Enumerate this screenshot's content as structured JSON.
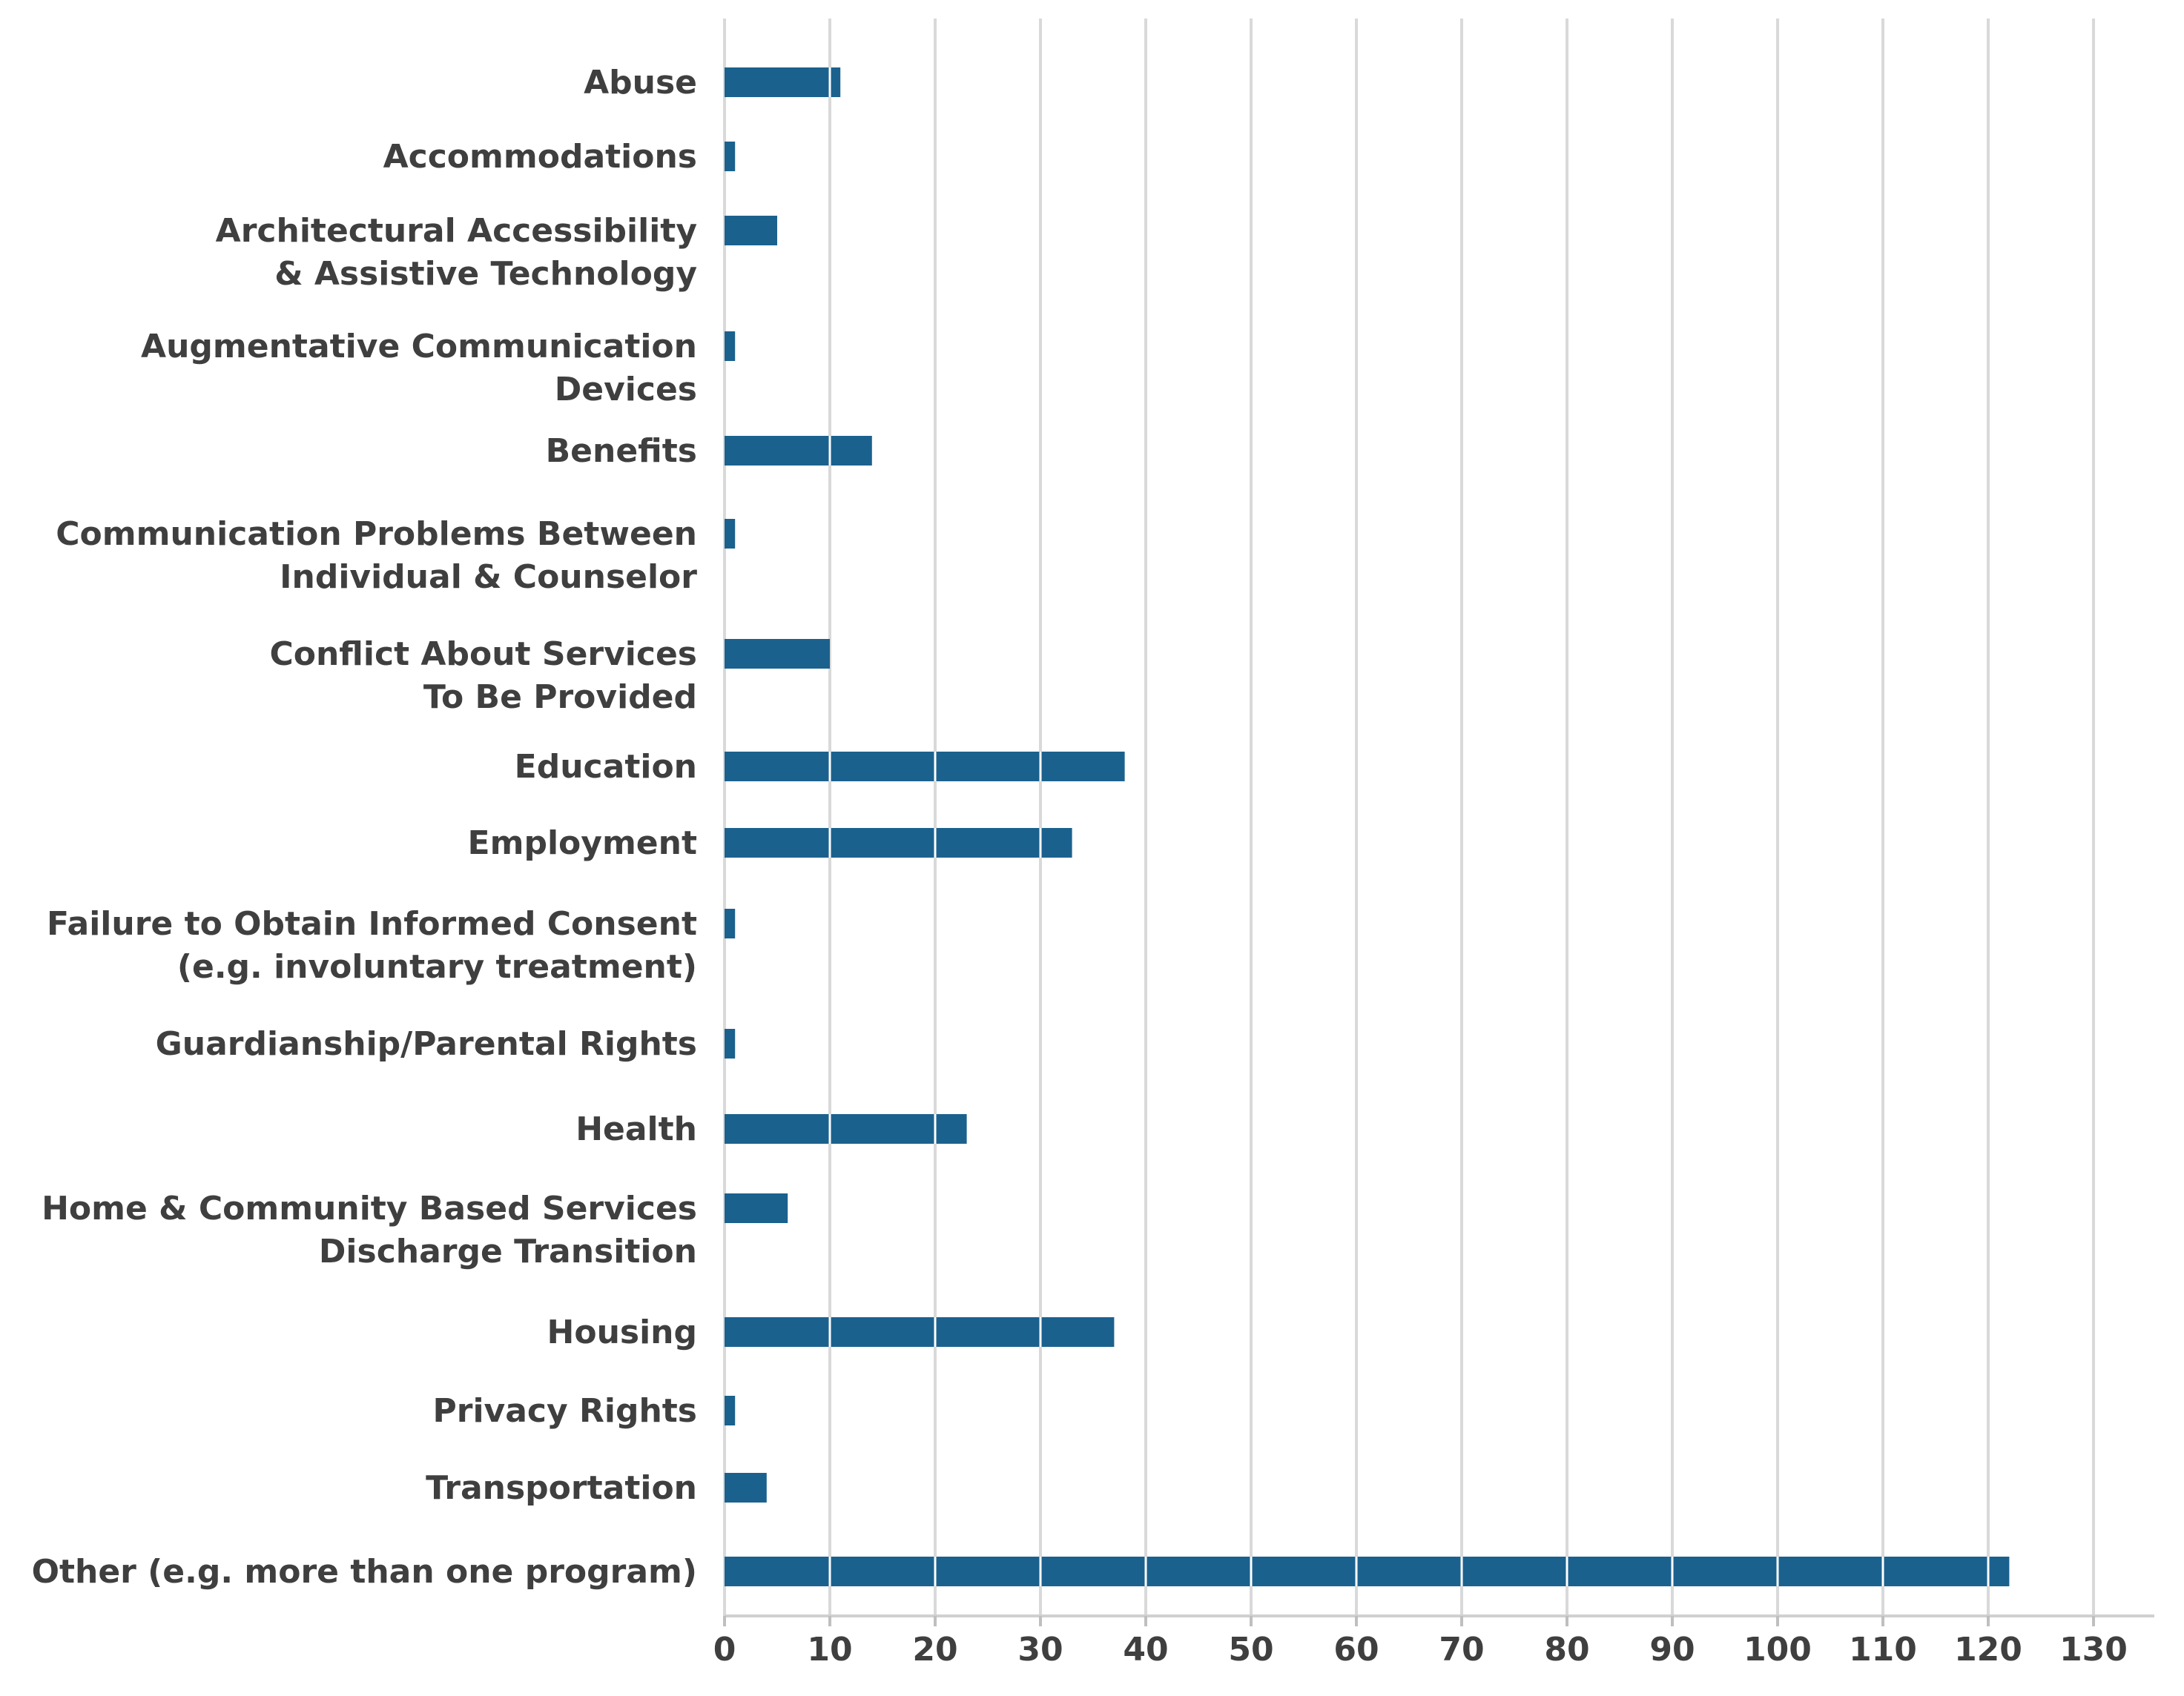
{
  "colors": {
    "bar": "#1b618e",
    "grid": "#d9d9d9",
    "text": "#3f3f3f",
    "background": "#ffffff"
  },
  "chart_data": {
    "type": "bar",
    "orientation": "horizontal",
    "title": "",
    "xlabel": "",
    "ylabel": "",
    "grid": true,
    "xlim": [
      0,
      130
    ],
    "xticks": [
      0,
      10,
      20,
      30,
      40,
      50,
      60,
      70,
      80,
      90,
      100,
      110,
      120,
      130
    ],
    "categories": [
      [
        "Abuse"
      ],
      [
        "Accommodations"
      ],
      [
        "Architectural Accessibility",
        "& Assistive Technology"
      ],
      [
        "Augmentative Communication",
        "Devices"
      ],
      [
        "Benefits"
      ],
      [
        "Communication Problems Between",
        "Individual & Counselor"
      ],
      [
        "Conflict About Services",
        "To Be Provided"
      ],
      [
        "Education"
      ],
      [
        "Employment"
      ],
      [
        "Failure to Obtain Informed Consent",
        "(e.g. involuntary treatment)"
      ],
      [
        "Guardianship/Parental Rights"
      ],
      [
        "Health"
      ],
      [
        "Home & Community Based Services",
        "Discharge Transition"
      ],
      [
        "Housing"
      ],
      [
        "Privacy Rights"
      ],
      [
        "Transportation"
      ],
      [
        "Other (e.g. more than one program)"
      ]
    ],
    "values": [
      11,
      1,
      5,
      1,
      14,
      1,
      10,
      38,
      33,
      1,
      1,
      23,
      6,
      37,
      1,
      4,
      122
    ]
  }
}
